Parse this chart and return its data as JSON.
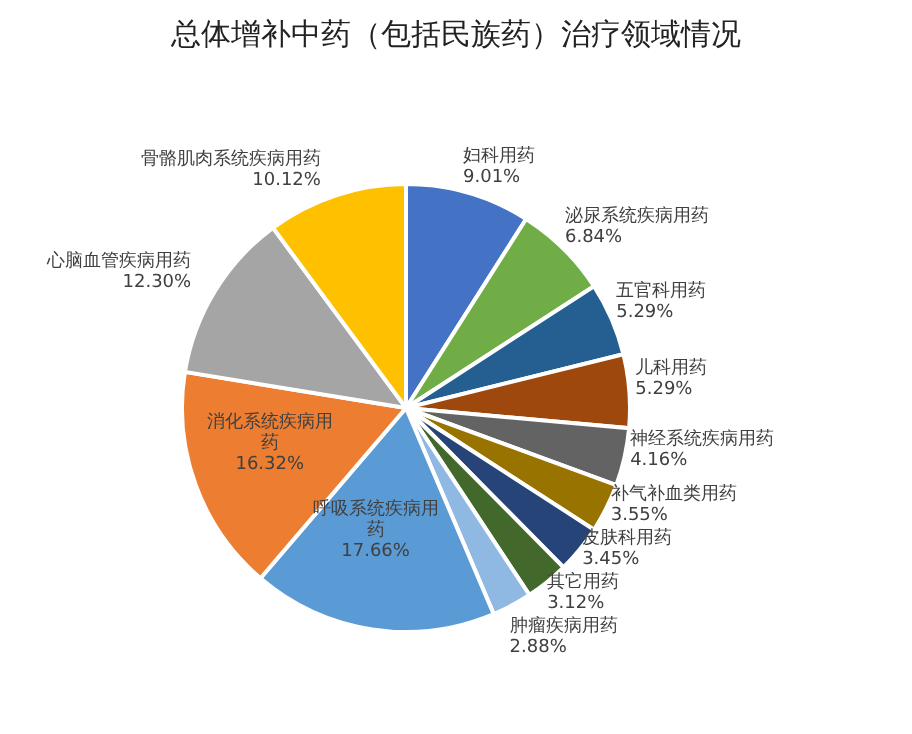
{
  "chart_data": {
    "type": "pie",
    "title": "总体增补中药（包括民族药）治疗领域情况",
    "categories": [
      "妇科用药",
      "泌尿系统疾病用药",
      "五官科用药",
      "儿科用药",
      "神经系统疾病用药",
      "补气补血类用药",
      "皮肤科用药",
      "其它用药",
      "肿瘤疾病用药",
      "呼吸系统疾病用药",
      "消化系统疾病用药",
      "心脑血管疾病用药",
      "骨骼肌肉系统疾病用药"
    ],
    "values": [
      9.01,
      6.84,
      5.29,
      5.29,
      4.16,
      3.55,
      3.45,
      3.12,
      2.88,
      17.66,
      16.32,
      12.3,
      10.12
    ],
    "value_labels": [
      "9.01%",
      "6.84%",
      "5.29%",
      "5.29%",
      "4.16%",
      "3.55%",
      "3.45%",
      "3.12%",
      "2.88%",
      "17.66%",
      "16.32%",
      "12.30%",
      "10.12%"
    ],
    "colors": [
      "#4472c4",
      "#70ad47",
      "#255e91",
      "#9e480e",
      "#636363",
      "#997300",
      "#264478",
      "#43682b",
      "#8fb8e3",
      "#5b9bd5",
      "#ed7d31",
      "#a5a5a5",
      "#ffc000"
    ]
  }
}
